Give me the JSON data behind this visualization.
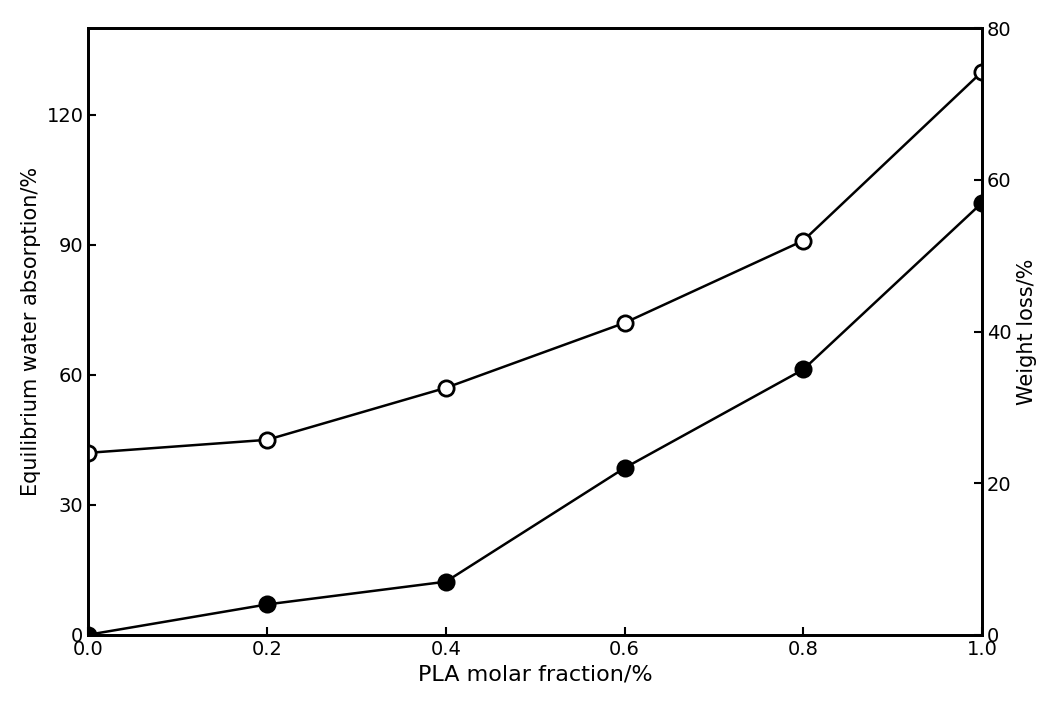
{
  "x": [
    0.0,
    0.2,
    0.4,
    0.6,
    0.8,
    1.0
  ],
  "water_absorption": [
    42,
    45,
    57,
    72,
    91,
    130
  ],
  "weight_loss": [
    0,
    4,
    7,
    22,
    35,
    57
  ],
  "xlabel": "PLA molar fraction/%",
  "ylabel_left": "Equilibrium water absorption/%",
  "ylabel_right": "Weight loss/%",
  "xlim": [
    0.0,
    1.0
  ],
  "ylim_left": [
    0,
    140
  ],
  "ylim_right": [
    0,
    80
  ],
  "yticks_left": [
    0,
    30,
    60,
    90,
    120
  ],
  "yticks_right": [
    0,
    20,
    40,
    60,
    80
  ],
  "xticks": [
    0.0,
    0.2,
    0.4,
    0.6,
    0.8,
    1.0
  ],
  "line_color": "#000000",
  "marker_size_open": 11,
  "marker_size_filled": 11,
  "linewidth": 1.8,
  "xlabel_fontsize": 16,
  "ylabel_fontsize": 15,
  "tick_fontsize": 14,
  "background_color": "#ffffff"
}
